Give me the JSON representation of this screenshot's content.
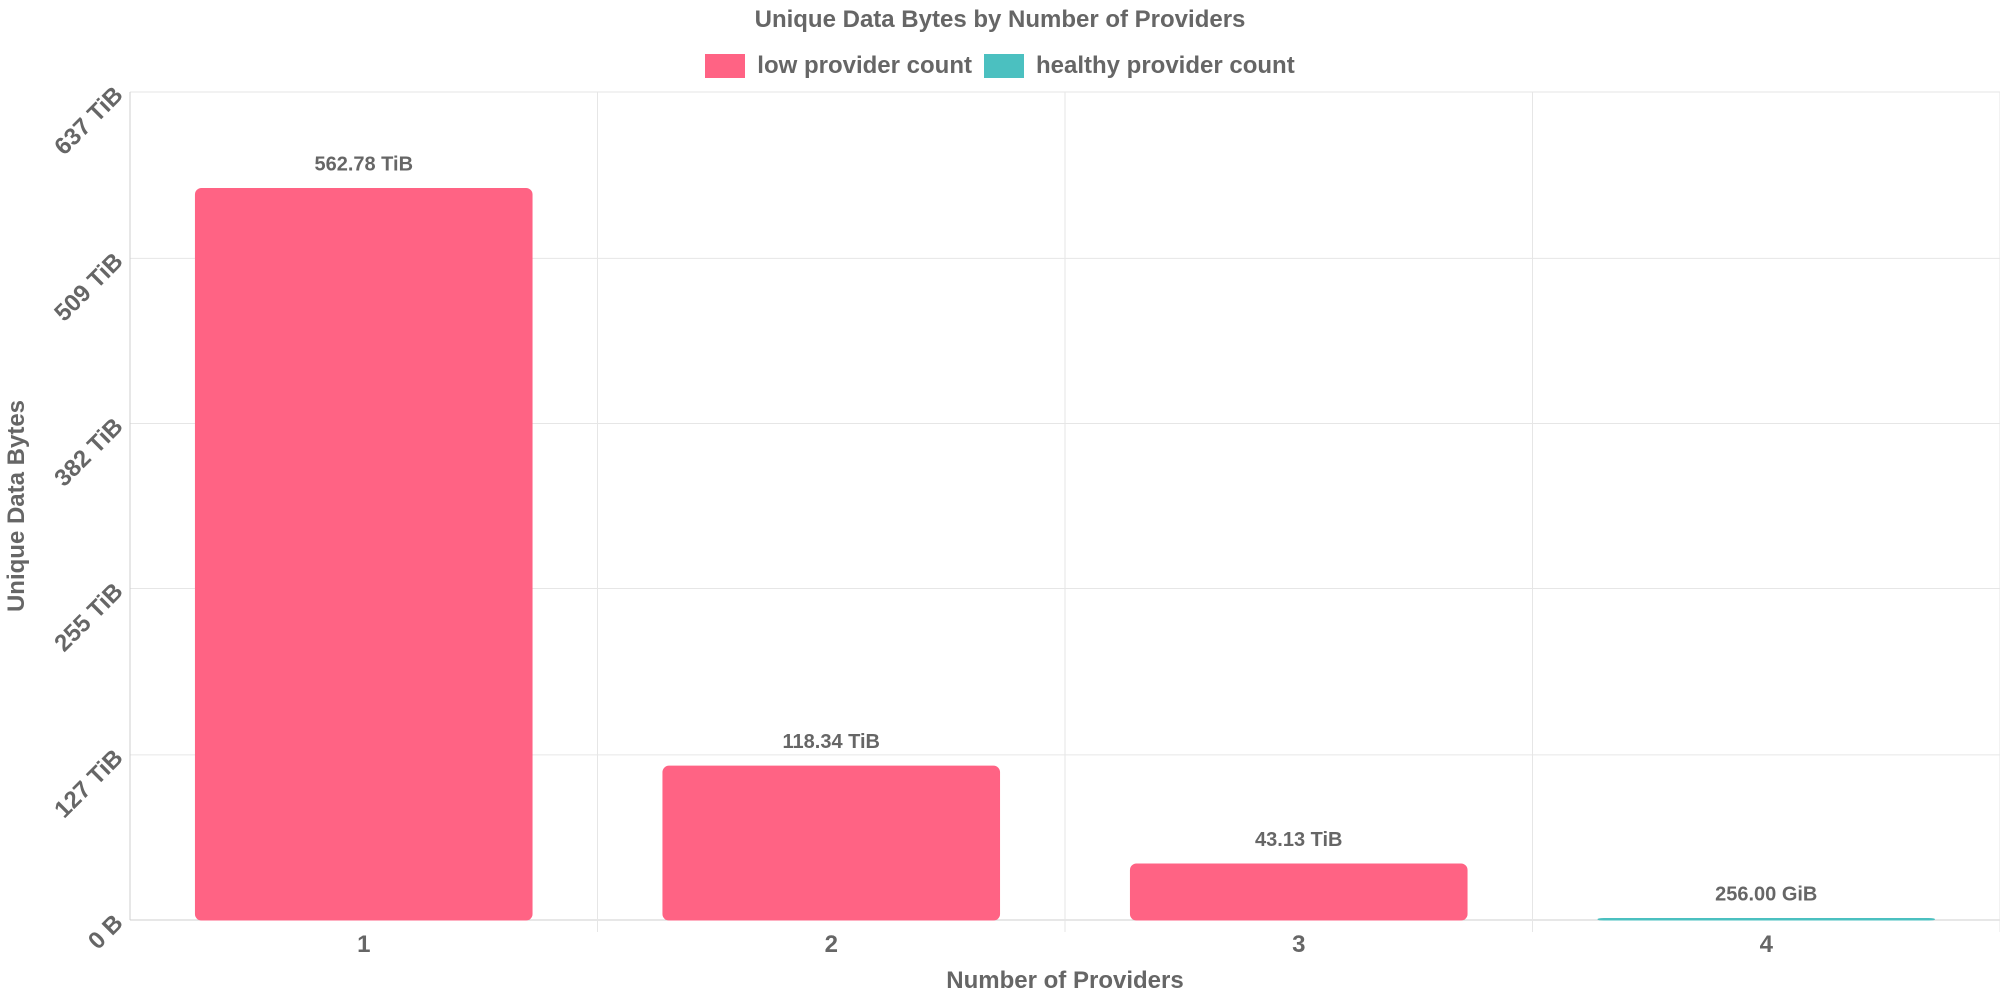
{
  "chart_data": {
    "type": "bar",
    "title": "Unique Data Bytes by Number of Providers",
    "xlabel": "Number of Providers",
    "ylabel": "Unique Data Bytes",
    "categories": [
      "1",
      "2",
      "3",
      "4"
    ],
    "series": [
      {
        "name": "low provider count",
        "color": "#ff6384",
        "values_tib": [
          562.78,
          118.34,
          43.13,
          null
        ],
        "data_labels": [
          "562.78 TiB",
          "118.34 TiB",
          "43.13 TiB",
          ""
        ]
      },
      {
        "name": "healthy provider count",
        "color": "#4bc0c0",
        "values_tib": [
          null,
          null,
          null,
          0.25
        ],
        "data_labels": [
          "",
          "",
          "",
          "256.00 GiB"
        ]
      }
    ],
    "y_unit": "TiB",
    "ylim": [
      0,
      637
    ],
    "y_ticks": [
      0,
      127,
      255,
      382,
      509,
      637
    ],
    "y_tick_labels": [
      "0 B",
      "127 TiB",
      "255 TiB",
      "382 TiB",
      "509 TiB",
      "637 TiB"
    ],
    "legend_position": "top",
    "grid": true
  }
}
